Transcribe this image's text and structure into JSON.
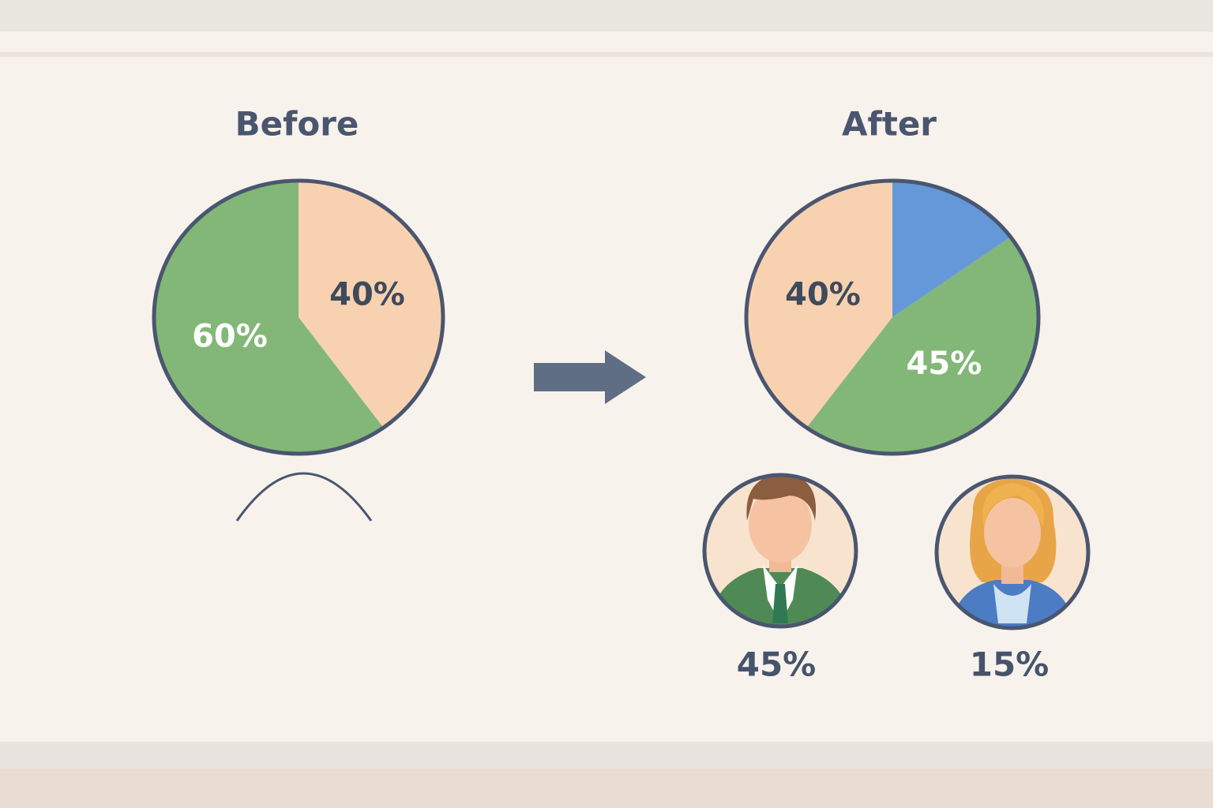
{
  "chart_data": [
    {
      "type": "pie",
      "title": "Before",
      "values": [
        40,
        60
      ],
      "value_labels": [
        "40%",
        "60%"
      ],
      "colors": [
        "#f8d2b0",
        "#83b777"
      ]
    },
    {
      "type": "pie",
      "title": "After",
      "values": [
        15,
        45,
        40
      ],
      "value_labels": [
        "15%",
        "45%",
        "40%"
      ],
      "colors": [
        "#6598d8",
        "#83b777",
        "#f8d2b0"
      ]
    }
  ]
}
